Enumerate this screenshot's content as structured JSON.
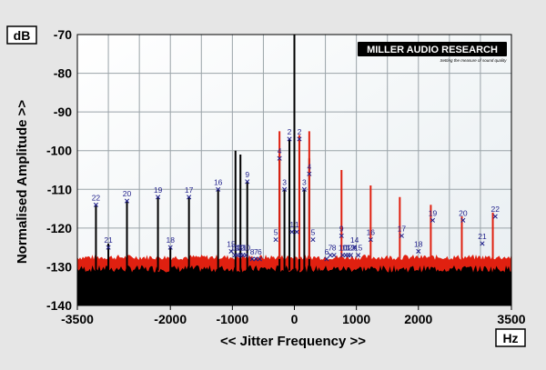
{
  "chart_data": {
    "type": "line",
    "unit_box_y": "dB",
    "unit_box_x": "Hz",
    "ylabel": "Normalised Amplitude >>",
    "xlabel": "<< Jitter Frequency >>",
    "xlim": [
      -3500,
      3500
    ],
    "ylim": [
      -140,
      -70
    ],
    "x_ticks": [
      -3500,
      -2000,
      -1000,
      0,
      1000,
      2000,
      3500
    ],
    "x_tick_labels": [
      "-3500",
      "-2000",
      "-1000",
      "0",
      "1000",
      "2000",
      "3500"
    ],
    "y_ticks": [
      -140,
      -130,
      -120,
      -110,
      -100,
      -90,
      -80,
      -70
    ],
    "y_tick_labels": [
      "-140",
      "-130",
      "-120",
      "-110",
      "-100",
      "-90",
      "-80",
      "-70"
    ],
    "noise_floor": {
      "red_top": -128,
      "black_top": -131
    },
    "series": [
      {
        "color": "#000000",
        "points": [
          {
            "x": -3200,
            "y": -114
          },
          {
            "x": -3000,
            "y": -124
          },
          {
            "x": -2700,
            "y": -113
          },
          {
            "x": -2200,
            "y": -112
          },
          {
            "x": -2000,
            "y": -125
          },
          {
            "x": -1700,
            "y": -112
          },
          {
            "x": -1230,
            "y": -110
          },
          {
            "x": -950,
            "y": -100
          },
          {
            "x": -870,
            "y": -101
          },
          {
            "x": -760,
            "y": -108
          },
          {
            "x": -240,
            "y": -102
          },
          {
            "x": -160,
            "y": -110
          },
          {
            "x": -80,
            "y": -97
          },
          {
            "x": 0,
            "y": -70
          },
          {
            "x": 80,
            "y": -97
          },
          {
            "x": 160,
            "y": -110
          },
          {
            "x": 240,
            "y": -102
          }
        ]
      },
      {
        "color": "#e02010",
        "points": [
          {
            "x": -240,
            "y": -95
          },
          {
            "x": 80,
            "y": -96
          },
          {
            "x": 240,
            "y": -95
          },
          {
            "x": 760,
            "y": -105
          },
          {
            "x": 1230,
            "y": -109
          },
          {
            "x": 1700,
            "y": -112
          },
          {
            "x": 2200,
            "y": -114
          },
          {
            "x": 2700,
            "y": -117
          },
          {
            "x": 3200,
            "y": -116
          }
        ]
      }
    ],
    "harmonic_markers": [
      {
        "label": "22",
        "x": -3200,
        "y": -114
      },
      {
        "label": "21",
        "x": -3000,
        "y": -125
      },
      {
        "label": "20",
        "x": -2700,
        "y": -113
      },
      {
        "label": "19",
        "x": -2200,
        "y": -112
      },
      {
        "label": "18",
        "x": -2000,
        "y": -125
      },
      {
        "label": "17",
        "x": -1700,
        "y": -112
      },
      {
        "label": "16",
        "x": -1230,
        "y": -110
      },
      {
        "label": "15",
        "x": -1020,
        "y": -126
      },
      {
        "label": "14",
        "x": -960,
        "y": -127
      },
      {
        "label": "13",
        "x": -910,
        "y": -127
      },
      {
        "label": "12",
        "x": -870,
        "y": -127
      },
      {
        "label": "11",
        "x": -830,
        "y": -127
      },
      {
        "label": "10",
        "x": -780,
        "y": -127
      },
      {
        "label": "9",
        "x": -760,
        "y": -108
      },
      {
        "label": "8",
        "x": -680,
        "y": -128
      },
      {
        "label": "7",
        "x": -620,
        "y": -128
      },
      {
        "label": "6",
        "x": -560,
        "y": -128
      },
      {
        "label": "5",
        "x": -300,
        "y": -123
      },
      {
        "label": "4",
        "x": -240,
        "y": -102
      },
      {
        "label": "3",
        "x": -160,
        "y": -110
      },
      {
        "label": "2",
        "x": -80,
        "y": -97
      },
      {
        "label": "1",
        "x": -40,
        "y": -121
      },
      {
        "label": "1",
        "x": 40,
        "y": -121
      },
      {
        "label": "2",
        "x": 80,
        "y": -97
      },
      {
        "label": "3",
        "x": 160,
        "y": -110
      },
      {
        "label": "4",
        "x": 240,
        "y": -106
      },
      {
        "label": "5",
        "x": 300,
        "y": -123
      },
      {
        "label": "6",
        "x": 520,
        "y": -128
      },
      {
        "label": "7",
        "x": 580,
        "y": -127
      },
      {
        "label": "8",
        "x": 640,
        "y": -127
      },
      {
        "label": "9",
        "x": 760,
        "y": -122
      },
      {
        "label": "10",
        "x": 780,
        "y": -127
      },
      {
        "label": "11",
        "x": 830,
        "y": -127
      },
      {
        "label": "12",
        "x": 870,
        "y": -127
      },
      {
        "label": "13",
        "x": 910,
        "y": -127
      },
      {
        "label": "14",
        "x": 970,
        "y": -125
      },
      {
        "label": "15",
        "x": 1030,
        "y": -127
      },
      {
        "label": "16",
        "x": 1230,
        "y": -123
      },
      {
        "label": "17",
        "x": 1730,
        "y": -122
      },
      {
        "label": "18",
        "x": 2000,
        "y": -126
      },
      {
        "label": "19",
        "x": 2230,
        "y": -118
      },
      {
        "label": "20",
        "x": 2720,
        "y": -118
      },
      {
        "label": "21",
        "x": 3030,
        "y": -124
      },
      {
        "label": "22",
        "x": 3240,
        "y": -117
      }
    ]
  },
  "brand": {
    "name": "MILLER AUDIO RESEARCH",
    "tagline": "Setting the measure of sound quality"
  },
  "colors": {
    "plot_bg": "#ffffff",
    "page_bg": "#e6e6e6",
    "grid": "#9aa3a8",
    "red_noise": "#e02010",
    "black_noise": "#000000",
    "marker": "#1f1f8a"
  }
}
